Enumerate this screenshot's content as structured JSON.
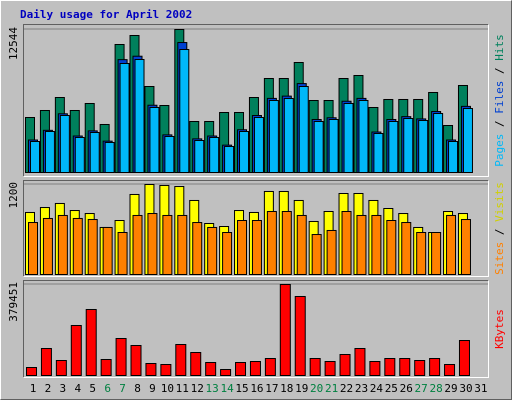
{
  "chart_data": [
    {
      "type": "bar",
      "title": "Daily usage for April 2002",
      "categories": [
        "1",
        "2",
        "3",
        "4",
        "5",
        "6",
        "7",
        "8",
        "9",
        "10",
        "11",
        "12",
        "13",
        "14",
        "15",
        "16",
        "17",
        "18",
        "19",
        "20",
        "21",
        "22",
        "23",
        "24",
        "25",
        "26",
        "27",
        "28",
        "29",
        "30",
        "31"
      ],
      "category_colors": [
        "#000000",
        "#000000",
        "#000000",
        "#000000",
        "#000000",
        "#008040",
        "#008040",
        "#000000",
        "#000000",
        "#000000",
        "#000000",
        "#000000",
        "#008040",
        "#008040",
        "#000000",
        "#000000",
        "#000000",
        "#000000",
        "#000000",
        "#008040",
        "#008040",
        "#000000",
        "#000000",
        "#000000",
        "#000000",
        "#000000",
        "#008040",
        "#008040",
        "#000000",
        "#000000",
        "#000000"
      ],
      "legend_separator": "/",
      "ylim": [
        0,
        12544
      ],
      "yticks": [
        12544
      ],
      "series": [
        {
          "name": "Hits",
          "color": "#00805c",
          "values": [
            4824,
            5439,
            6579,
            5439,
            6053,
            4211,
            11228,
            12018,
            7544,
            5877,
            12544,
            4474,
            4474,
            5263,
            5263,
            6579,
            8246,
            8246,
            9649,
            6316,
            6316,
            8246,
            8509,
            5702,
            6404,
            6404,
            6404,
            7018,
            4123,
            7632,
            null
          ]
        },
        {
          "name": "Files",
          "color": "#0040d0",
          "values": [
            2850,
            3700,
            5150,
            3200,
            3650,
            2750,
            9900,
            10200,
            5900,
            3300,
            11400,
            2950,
            3200,
            2400,
            3750,
            5000,
            6500,
            6700,
            7800,
            4650,
            4800,
            6250,
            6500,
            3550,
            4650,
            4900,
            4700,
            5350,
            2850,
            5800,
            null
          ]
        },
        {
          "name": "Pages",
          "color": "#00b8f8",
          "values": [
            2719,
            3597,
            5000,
            3070,
            3509,
            2632,
            9561,
            9912,
            5702,
            3158,
            10789,
            2807,
            3070,
            2281,
            3597,
            4825,
            6316,
            6491,
            7544,
            4474,
            4649,
            6053,
            6316,
            3421,
            4474,
            4737,
            4561,
            5175,
            2719,
            5614,
            null
          ]
        }
      ]
    },
    {
      "type": "bar",
      "ylim": [
        0,
        1200
      ],
      "yticks": [
        1200
      ],
      "series": [
        {
          "name": "Visits",
          "color": "#ffff00",
          "label_color": "#d0d000",
          "values": [
            827,
            893,
            947,
            853,
            813,
            627,
            720,
            1067,
            1200,
            1187,
            1173,
            987,
            680,
            640,
            853,
            827,
            1107,
            1107,
            987,
            707,
            840,
            1080,
            1080,
            987,
            880,
            813,
            627,
            560,
            840,
            813,
            null
          ]
        },
        {
          "name": "Sites",
          "color": "#ff8000",
          "values": [
            693,
            747,
            787,
            747,
            733,
            627,
            560,
            787,
            813,
            787,
            787,
            693,
            627,
            560,
            720,
            720,
            840,
            840,
            787,
            533,
            587,
            840,
            787,
            787,
            720,
            693,
            560,
            560,
            787,
            733,
            null
          ]
        }
      ]
    },
    {
      "type": "bar",
      "ylim": [
        0,
        379451
      ],
      "yticks": [
        379451
      ],
      "series": [
        {
          "name": "KBytes",
          "color": "#ff0000",
          "values": [
            33360,
            112590,
            62550,
            208500,
            275220,
            66720,
            154290,
            125100,
            50040,
            45870,
            129270,
            95910,
            54210,
            25020,
            54210,
            58380,
            70890,
            379451,
            329430,
            70890,
            58380,
            87570,
            112590,
            58380,
            70890,
            70890,
            62550,
            70890,
            45870,
            145950,
            null
          ]
        }
      ]
    }
  ]
}
